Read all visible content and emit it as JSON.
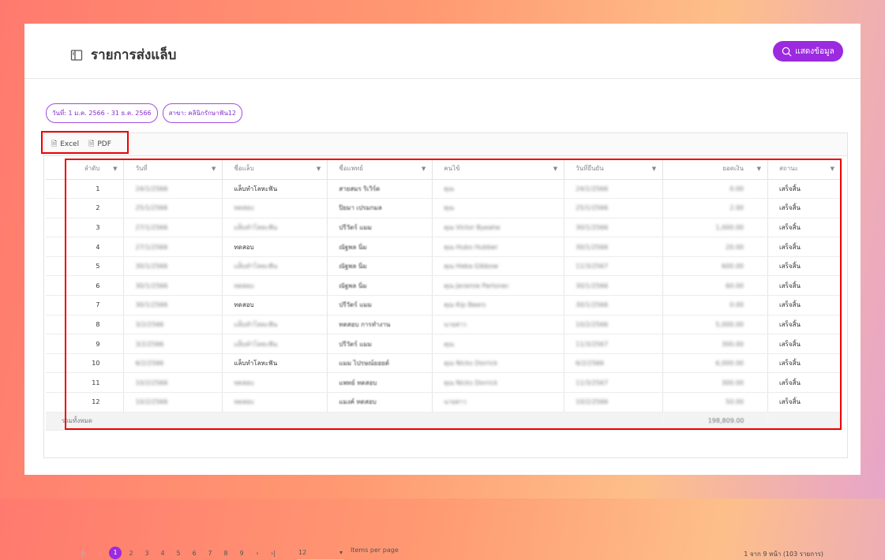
{
  "header": {
    "title": "รายการส่งแล็บ",
    "show_button": "แสดงข้อมูล"
  },
  "filters": [
    "วันที่: 1 ม.ค. 2566 - 31 ธ.ค. 2566",
    "สาขา: คลินิกรักษาฟัน12"
  ],
  "export": {
    "excel": "Excel",
    "pdf": "PDF"
  },
  "columns": [
    "ลำดับ",
    "วันที่",
    "ชื่อแล็บ",
    "ชื่อแพทย์",
    "คนไข้",
    "วันที่ยืนยัน",
    "ยอดเงิน",
    "สถานะ"
  ],
  "rows": [
    [
      "1",
      "24/1/2566",
      "แล็บทำโลหะฟัน",
      "สายสมร ริเวิร์ด",
      "คุณ",
      "24/1/2566",
      "0.00",
      "เสร็จสิ้น"
    ],
    [
      "2",
      "25/1/2566",
      "ทดสอบ",
      "ปิยมา เปรมกมล",
      "คุณ",
      "25/1/2566",
      "2.00",
      "เสร็จสิ้น"
    ],
    [
      "3",
      "27/1/2566",
      "แล็บทำโลหะฟัน",
      "ปรีวัตร์ แมม",
      "คุณ Victor Byeahe",
      "30/1/2566",
      "1,000.00",
      "เสร็จสิ้น"
    ],
    [
      "4",
      "27/1/2566",
      "ทดสอบ",
      "ณัฐพล นิ่ม",
      "คุณ Hubo Hubber",
      "30/1/2566",
      "20.00",
      "เสร็จสิ้น"
    ],
    [
      "5",
      "30/1/2566",
      "แล็บทำโลหะฟัน",
      "ณัฐพล นิ่ม",
      "คุณ Heba Gibbow",
      "11/3/2567",
      "600.00",
      "เสร็จสิ้น"
    ],
    [
      "6",
      "30/1/2566",
      "ทดสอบ",
      "ณัฐพล นิ่ม",
      "คุณ Jeramie Parlonec",
      "30/1/2566",
      "60.00",
      "เสร็จสิ้น"
    ],
    [
      "7",
      "30/1/2566",
      "ทดสอบ",
      "ปรีวัตร์ แมม",
      "คุณ Kip Beers",
      "30/1/2566",
      "0.00",
      "เสร็จสิ้น"
    ],
    [
      "8",
      "3/2/2566",
      "แล็บทำโลหะฟัน",
      "ทดสอบ การทำงาน",
      "นายสาว",
      "10/2/2566",
      "5,000.00",
      "เสร็จสิ้น"
    ],
    [
      "9",
      "3/2/2566",
      "แล็บทำโลหะฟัน",
      "ปรีวัตร์ แมม",
      "คุณ",
      "11/3/2567",
      "300.00",
      "เสร็จสิ้น"
    ],
    [
      "10",
      "6/2/2566",
      "แล็บทำโลหะฟัน",
      "แมม ไปรษณ์ยอยด์",
      "คุณ Nicks Dorrick",
      "6/2/2566",
      "6,000.00",
      "เสร็จสิ้น"
    ],
    [
      "11",
      "10/2/2566",
      "ทดสอบ",
      "แพทย์ ทดสอบ",
      "คุณ Nicks Dorrick",
      "11/3/2567",
      "300.00",
      "เสร็จสิ้น"
    ],
    [
      "12",
      "10/2/2566",
      "ทดสอบ",
      "แมงค์ ทดสอบ",
      "นายสาว",
      "10/2/2566",
      "50.00",
      "เสร็จสิ้น"
    ]
  ],
  "total": {
    "label": "รวมทั้งหมด",
    "amount": "198,809.00"
  },
  "pagination": {
    "pages": [
      "1",
      "2",
      "3",
      "4",
      "5",
      "6",
      "7",
      "8",
      "9"
    ],
    "current": "1",
    "per_page": "12",
    "per_page_label": "Items per page",
    "info": "1 จาก 9 หน้า (103 รายการ)"
  },
  "colors": {
    "accent": "#9b2ae0",
    "highlight_box": "#e00000"
  }
}
